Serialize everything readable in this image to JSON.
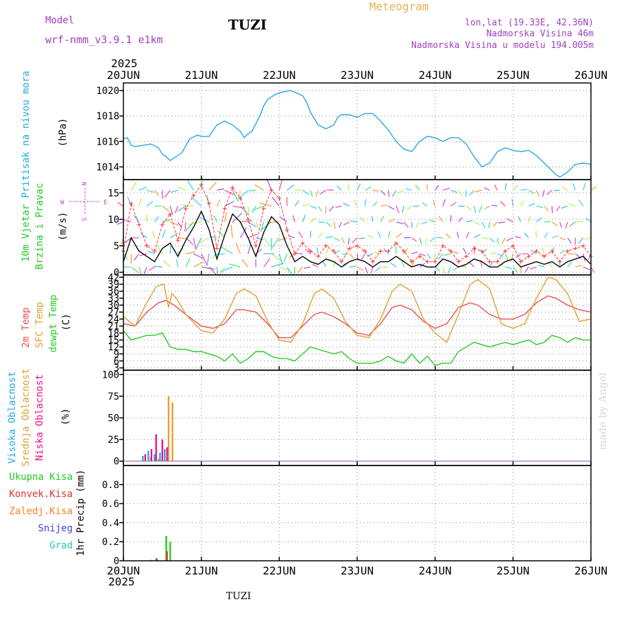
{
  "header": {
    "model_label": "Model",
    "model_name": "wrf-nmm_v3.9.1 e1km",
    "station_title": "TUZI",
    "product": "Meteogram",
    "coords": "lon,lat (19.33E, 42.36N)",
    "elevation": "Nadmorska Visina 46m",
    "model_elevation": "Nadmorska Visina u modelu 194.005m"
  },
  "footer": {
    "station": "TUZI",
    "credit": "made by Angel"
  },
  "time_axis": {
    "year": "2025",
    "labels": [
      "20JUN",
      "21JUN",
      "22JUN",
      "23JUN",
      "24JUN",
      "25JUN",
      "26JUN"
    ],
    "range_days": [
      0,
      6
    ]
  },
  "colors": {
    "pressure": "#22a8e8",
    "wind_speed": "#000000",
    "gust": "#ff3333",
    "t2m": "#e85050",
    "sfc": "#e0a030",
    "dew": "#22cc22",
    "cloud_high": "#22a8e8",
    "cloud_mid": "#e0a030",
    "cloud_low": "#ee1188",
    "precip_total": "#22cc22",
    "precip_conv": "#e83030",
    "precip_frz": "#ff8020",
    "precip_snow": "#4040e0",
    "precip_hail": "#22ccaa",
    "axis": "#000000",
    "grid": "#808080",
    "compass": "#c040d0",
    "credit": "#d8d8d8"
  },
  "chart_data": [
    {
      "type": "line",
      "panel": "pressure",
      "ylabel": [
        "Pritisak na nivou mora",
        "(hPa)"
      ],
      "ylim": [
        1013,
        1020.6
      ],
      "yticks": [
        1014,
        1016,
        1018,
        1020
      ],
      "series": [
        {
          "key": "pressure",
          "x": [
            0,
            0.05,
            0.1,
            0.15,
            0.25,
            0.35,
            0.45,
            0.5,
            0.55,
            0.6,
            0.65,
            0.75,
            0.85,
            0.95,
            1.0,
            1.1,
            1.2,
            1.3,
            1.4,
            1.5,
            1.55,
            1.6,
            1.65,
            1.75,
            1.8,
            1.85,
            1.95,
            2.05,
            2.15,
            2.3,
            2.35,
            2.4,
            2.5,
            2.6,
            2.7,
            2.75,
            2.8,
            2.9,
            3.0,
            3.1,
            3.2,
            3.3,
            3.4,
            3.5,
            3.6,
            3.7,
            3.8,
            3.9,
            4.0,
            4.1,
            4.2,
            4.3,
            4.4,
            4.5,
            4.6,
            4.7,
            4.8,
            4.9,
            5.0,
            5.1,
            5.2,
            5.3,
            5.4,
            5.5,
            5.55,
            5.6,
            5.7,
            5.8,
            5.9,
            6.0
          ],
          "y": [
            1016.2,
            1016.3,
            1015.7,
            1015.6,
            1015.7,
            1015.8,
            1015.5,
            1015,
            1014.8,
            1014.5,
            1014.7,
            1015.1,
            1016.2,
            1016.5,
            1016.4,
            1016.4,
            1017.3,
            1017.6,
            1017.3,
            1016.8,
            1016.3,
            1016.6,
            1016.8,
            1018,
            1018.8,
            1019.3,
            1019.7,
            1019.9,
            1020,
            1019.6,
            1019.1,
            1018.3,
            1017.3,
            1017,
            1017.3,
            1017.9,
            1018.1,
            1018.1,
            1017.9,
            1018.2,
            1018.2,
            1017.6,
            1016.9,
            1016,
            1015.4,
            1015.2,
            1016,
            1016.4,
            1016.3,
            1016,
            1016.3,
            1016.3,
            1015.8,
            1014.8,
            1014,
            1014.3,
            1015.2,
            1015.5,
            1015.3,
            1015.2,
            1015.3,
            1014.9,
            1014.3,
            1013.7,
            1013.4,
            1013.2,
            1013.6,
            1014.2,
            1014.3,
            1014.2
          ]
        }
      ]
    },
    {
      "type": "line",
      "panel": "wind",
      "ylabel": [
        "10m Vjetar",
        "Brzina i Pravac",
        "(m/s)"
      ],
      "compass": [
        "N",
        "W",
        "E",
        "S"
      ],
      "ylim": [
        -0.5,
        17.5
      ],
      "yticks": [
        0,
        5,
        10,
        15
      ],
      "series": [
        {
          "key": "wind_speed",
          "x": [
            0,
            0.1,
            0.2,
            0.3,
            0.4,
            0.5,
            0.6,
            0.7,
            0.8,
            0.9,
            1.0,
            1.1,
            1.2,
            1.3,
            1.4,
            1.5,
            1.6,
            1.7,
            1.8,
            1.9,
            2.0,
            2.1,
            2.2,
            2.3,
            2.4,
            2.5,
            2.6,
            2.7,
            2.8,
            2.9,
            3.0,
            3.1,
            3.2,
            3.3,
            3.4,
            3.5,
            3.6,
            3.7,
            3.8,
            3.9,
            4.0,
            4.1,
            4.2,
            4.3,
            4.4,
            4.5,
            4.6,
            4.7,
            4.8,
            4.9,
            5.0,
            5.1,
            5.2,
            5.3,
            5.4,
            5.5,
            5.6,
            5.7,
            5.8,
            5.9,
            6.0
          ],
          "y": [
            2,
            6.5,
            4,
            3,
            2,
            4.5,
            5.5,
            3,
            6,
            8.5,
            11.5,
            8,
            2.5,
            7,
            11,
            9.5,
            6.5,
            3,
            7.5,
            10.5,
            9,
            5,
            2,
            3,
            2,
            1.5,
            2.5,
            2,
            1,
            2,
            2.5,
            2,
            1,
            2,
            2,
            3,
            2,
            1,
            1.5,
            1,
            1,
            2.5,
            2,
            1,
            1.5,
            2.5,
            2,
            1,
            1,
            2,
            2.5,
            1,
            1.5,
            2,
            1.5,
            2,
            1,
            2,
            2.5,
            3,
            1.5
          ]
        },
        {
          "key": "gust",
          "x": [
            0,
            0.1,
            0.2,
            0.3,
            0.4,
            0.5,
            0.6,
            0.7,
            0.8,
            0.9,
            1.0,
            1.1,
            1.2,
            1.3,
            1.4,
            1.5,
            1.6,
            1.7,
            1.8,
            1.9,
            2.0,
            2.1,
            2.2,
            2.3,
            2.4,
            2.5,
            2.6,
            2.7,
            2.8,
            2.9,
            3.0,
            3.1,
            3.2,
            3.3,
            3.4,
            3.5,
            3.6,
            3.7,
            3.8,
            3.9,
            4.0,
            4.1,
            4.2,
            4.3,
            4.4,
            4.5,
            4.6,
            4.7,
            4.8,
            4.9,
            5.0,
            5.1,
            5.2,
            5.3,
            5.4,
            5.5,
            5.6,
            5.7,
            5.8,
            5.9,
            6.0
          ],
          "y": [
            4,
            13,
            9,
            5,
            4,
            9,
            11,
            6,
            12,
            14.5,
            16.5,
            13,
            4.5,
            12,
            16,
            14,
            10,
            5,
            12,
            15.5,
            14,
            8,
            3.5,
            5.5,
            4,
            3,
            5,
            4,
            2,
            4.5,
            5,
            4,
            2,
            4,
            4,
            5.5,
            4,
            2,
            3,
            2,
            2,
            5,
            4,
            2,
            3,
            4.5,
            4,
            2,
            2,
            4,
            5,
            2,
            3,
            4,
            3,
            4,
            2,
            4,
            4.5,
            5,
            3
          ]
        }
      ]
    },
    {
      "type": "line",
      "panel": "temperature",
      "ylabel": [
        "2m Temp",
        "SFC Temp",
        "dewpt Temp",
        "(C)"
      ],
      "ylim": [
        2,
        43
      ],
      "yticks": [
        3,
        6,
        9,
        12,
        15,
        18,
        21,
        24,
        27,
        30,
        33,
        36,
        39,
        42
      ],
      "series": [
        {
          "key": "t2m",
          "x": [
            0,
            0.15,
            0.3,
            0.45,
            0.55,
            0.65,
            0.8,
            1.0,
            1.15,
            1.3,
            1.45,
            1.55,
            1.7,
            1.85,
            2.0,
            2.15,
            2.3,
            2.45,
            2.55,
            2.7,
            2.85,
            3.0,
            3.15,
            3.3,
            3.45,
            3.55,
            3.7,
            3.85,
            4.0,
            4.15,
            4.3,
            4.45,
            4.55,
            4.7,
            4.85,
            5.0,
            5.15,
            5.3,
            5.45,
            5.55,
            5.7,
            5.85,
            6.0
          ],
          "y": [
            22,
            21,
            27,
            31,
            32,
            30,
            26,
            21,
            20,
            22,
            28,
            28,
            27,
            22,
            16,
            16,
            21,
            26,
            27,
            25,
            22,
            18,
            17,
            22,
            29,
            30,
            28,
            23,
            20,
            22,
            29,
            31,
            30,
            26,
            24,
            24,
            26,
            31,
            34,
            33,
            30,
            28,
            27
          ]
        },
        {
          "key": "sfc",
          "x": [
            0,
            0.15,
            0.3,
            0.42,
            0.52,
            0.58,
            0.62,
            0.68,
            0.8,
            1.0,
            1.15,
            1.3,
            1.45,
            1.55,
            1.7,
            1.85,
            2.0,
            2.15,
            2.3,
            2.45,
            2.55,
            2.7,
            2.85,
            3.0,
            3.15,
            3.3,
            3.45,
            3.55,
            3.7,
            3.85,
            4.0,
            4.15,
            4.3,
            4.45,
            4.55,
            4.7,
            4.85,
            5.0,
            5.15,
            5.3,
            5.45,
            5.55,
            5.7,
            5.85,
            6.0
          ],
          "y": [
            25,
            21,
            31,
            38,
            39,
            29,
            35,
            33,
            26,
            19,
            18,
            24,
            35,
            37,
            34,
            23,
            15,
            14,
            22,
            35,
            37,
            33,
            23,
            17,
            16,
            24,
            36,
            39,
            36,
            24,
            18,
            14,
            26,
            39,
            41,
            37,
            22,
            20,
            22,
            33,
            42,
            41,
            35,
            23,
            24
          ]
        },
        {
          "key": "dew",
          "x": [
            0,
            0.1,
            0.2,
            0.3,
            0.4,
            0.5,
            0.6,
            0.7,
            0.8,
            0.9,
            1.0,
            1.1,
            1.2,
            1.3,
            1.4,
            1.5,
            1.6,
            1.7,
            1.8,
            1.9,
            2.0,
            2.1,
            2.2,
            2.3,
            2.4,
            2.5,
            2.6,
            2.7,
            2.8,
            2.9,
            3.0,
            3.1,
            3.2,
            3.3,
            3.4,
            3.5,
            3.6,
            3.7,
            3.8,
            3.9,
            4.0,
            4.1,
            4.2,
            4.3,
            4.4,
            4.5,
            4.6,
            4.7,
            4.8,
            4.9,
            5.0,
            5.1,
            5.2,
            5.3,
            5.4,
            5.5,
            5.6,
            5.7,
            5.8,
            5.9,
            6.0
          ],
          "y": [
            19,
            15,
            16,
            17,
            17,
            18,
            12,
            11,
            11,
            10,
            10,
            9,
            8,
            6,
            9,
            5,
            7,
            10,
            10,
            8,
            7,
            7,
            6,
            9,
            12,
            11,
            10,
            9,
            10,
            7,
            5,
            5,
            5,
            6,
            8,
            6,
            5,
            9,
            5,
            8,
            4,
            5,
            5,
            10,
            12,
            14,
            13,
            12,
            13,
            14,
            13,
            14,
            15,
            13,
            14,
            17,
            16,
            14,
            16,
            15,
            15
          ]
        }
      ]
    },
    {
      "type": "bar",
      "panel": "cloud",
      "ylabel": [
        "Visoka Oblacnost",
        "Srednja Oblacnost",
        "Niska Oblacnost",
        "(%)"
      ],
      "ylim": [
        -5,
        105
      ],
      "yticks": [
        0,
        25,
        50,
        75,
        100
      ],
      "series": [
        {
          "key": "cloud_high",
          "x": [
            0.25,
            0.32,
            0.4,
            0.47,
            0.53
          ],
          "values": [
            6,
            12,
            8,
            10,
            14
          ]
        },
        {
          "key": "cloud_mid",
          "x": [
            0.35,
            0.45,
            0.58,
            0.63
          ],
          "values": [
            5,
            3,
            75,
            68
          ]
        },
        {
          "key": "cloud_low",
          "x": [
            0.28,
            0.36,
            0.42,
            0.5,
            0.56
          ],
          "values": [
            8,
            14,
            31,
            25,
            16
          ]
        }
      ]
    },
    {
      "type": "bar",
      "panel": "precip",
      "ylabel": [
        "1hr Precip (mm)"
      ],
      "legend": [
        "Ukupna Kisa",
        "Konvek.Kisa",
        "Zaledj.Kisa",
        "Snijeg",
        "Grad"
      ],
      "ylim": [
        0,
        1.0
      ],
      "yticks": [
        0,
        0.2,
        0.4,
        0.6,
        0.8
      ],
      "series": [
        {
          "key": "precip_total",
          "x": [
            0.35,
            0.42,
            0.55,
            0.6
          ],
          "values": [
            0.01,
            0.03,
            0.26,
            0.2
          ]
        },
        {
          "key": "precip_conv",
          "x": [
            0.36,
            0.43,
            0.56
          ],
          "values": [
            0.005,
            0.02,
            0.1
          ]
        }
      ]
    }
  ]
}
